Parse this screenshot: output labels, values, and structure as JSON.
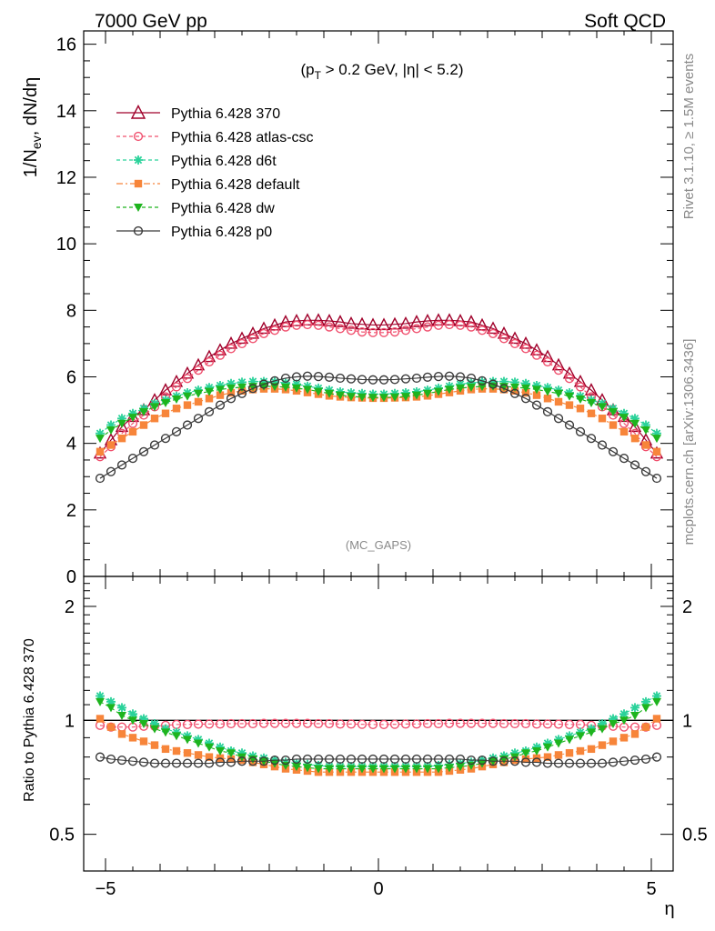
{
  "header": {
    "left": "7000 GeV pp",
    "right": "Soft QCD"
  },
  "cut_label": {
    "pre": "(p",
    "sub": "T",
    "post": " > 0.2 GeV, |η| < 5.2)"
  },
  "watermark": "(MC_GAPS)",
  "side": {
    "rivet": "Rivet 3.1.10, ≥ 1.5M events",
    "mcplots": "mcplots.cern.ch [arXiv:1306.3436]"
  },
  "chart_data": [
    {
      "type": "line",
      "ylabel": "1/Nev, dN/dη",
      "ylabel_parts": {
        "a": "1/N",
        "sub": "ev",
        "b": ", dN/dη"
      },
      "xlim": [
        -5.4,
        5.4
      ],
      "ylim": [
        0,
        16.4
      ],
      "yticks": [
        0,
        2,
        4,
        6,
        8,
        10,
        12,
        14,
        16
      ],
      "x": [
        -5.1,
        -4.9,
        -4.7,
        -4.5,
        -4.3,
        -4.1,
        -3.9,
        -3.7,
        -3.5,
        -3.3,
        -3.1,
        -2.9,
        -2.7,
        -2.5,
        -2.3,
        -2.1,
        -1.9,
        -1.7,
        -1.5,
        -1.3,
        -1.1,
        -0.9,
        -0.7,
        -0.5,
        -0.3,
        -0.1,
        0.1,
        0.3,
        0.5,
        0.7,
        0.9,
        1.1,
        1.3,
        1.5,
        1.7,
        1.9,
        2.1,
        2.3,
        2.5,
        2.7,
        2.9,
        3.1,
        3.3,
        3.5,
        3.7,
        3.9,
        4.1,
        4.3,
        4.5,
        4.7,
        4.9,
        5.1
      ],
      "series": [
        {
          "name": "Pythia 6.428 370",
          "color": "#a0002a",
          "marker": "triangle-open",
          "dash": "solid",
          "values": [
            3.7,
            4.1,
            4.5,
            4.8,
            5.0,
            5.3,
            5.6,
            5.85,
            6.1,
            6.35,
            6.6,
            6.8,
            7.0,
            7.15,
            7.3,
            7.45,
            7.55,
            7.65,
            7.68,
            7.7,
            7.7,
            7.68,
            7.65,
            7.6,
            7.58,
            7.56,
            7.56,
            7.58,
            7.6,
            7.65,
            7.68,
            7.7,
            7.7,
            7.68,
            7.65,
            7.55,
            7.45,
            7.3,
            7.15,
            7.0,
            6.8,
            6.6,
            6.35,
            6.1,
            5.85,
            5.6,
            5.3,
            5.0,
            4.8,
            4.5,
            4.1,
            3.7
          ]
        },
        {
          "name": "Pythia 6.428 atlas-csc",
          "color": "#f0506e",
          "marker": "circle-open",
          "dash": "4,3",
          "values": [
            3.6,
            3.9,
            4.3,
            4.6,
            4.85,
            5.1,
            5.4,
            5.7,
            5.95,
            6.2,
            6.45,
            6.65,
            6.85,
            7.0,
            7.15,
            7.3,
            7.4,
            7.5,
            7.55,
            7.57,
            7.55,
            7.5,
            7.45,
            7.4,
            7.35,
            7.33,
            7.33,
            7.35,
            7.4,
            7.45,
            7.5,
            7.55,
            7.57,
            7.55,
            7.5,
            7.4,
            7.3,
            7.15,
            7.0,
            6.85,
            6.65,
            6.45,
            6.2,
            5.95,
            5.7,
            5.4,
            5.1,
            4.85,
            4.6,
            4.3,
            3.9,
            3.6
          ]
        },
        {
          "name": "Pythia 6.428 d6t",
          "color": "#2ad29a",
          "marker": "star",
          "dash": "4,3",
          "values": [
            4.3,
            4.55,
            4.75,
            4.9,
            5.05,
            5.2,
            5.3,
            5.42,
            5.52,
            5.6,
            5.68,
            5.74,
            5.8,
            5.84,
            5.86,
            5.86,
            5.85,
            5.82,
            5.78,
            5.72,
            5.66,
            5.6,
            5.55,
            5.52,
            5.5,
            5.48,
            5.48,
            5.5,
            5.52,
            5.55,
            5.6,
            5.66,
            5.72,
            5.78,
            5.82,
            5.85,
            5.86,
            5.86,
            5.84,
            5.8,
            5.74,
            5.68,
            5.6,
            5.52,
            5.42,
            5.3,
            5.2,
            5.05,
            4.9,
            4.75,
            4.55,
            4.3
          ]
        },
        {
          "name": "Pythia 6.428 default",
          "color": "#f7853a",
          "marker": "square",
          "dash": "7,3,2,3",
          "values": [
            3.75,
            3.95,
            4.15,
            4.35,
            4.55,
            4.75,
            4.9,
            5.05,
            5.15,
            5.25,
            5.35,
            5.45,
            5.52,
            5.58,
            5.62,
            5.64,
            5.64,
            5.62,
            5.58,
            5.53,
            5.48,
            5.43,
            5.4,
            5.38,
            5.37,
            5.36,
            5.36,
            5.37,
            5.38,
            5.4,
            5.43,
            5.48,
            5.53,
            5.58,
            5.62,
            5.64,
            5.64,
            5.62,
            5.58,
            5.52,
            5.45,
            5.35,
            5.25,
            5.15,
            5.05,
            4.9,
            4.75,
            4.55,
            4.35,
            4.15,
            3.95,
            3.75
          ]
        },
        {
          "name": "Pythia 6.428 dw",
          "color": "#1eb41e",
          "marker": "triangle-down",
          "dash": "4,3",
          "values": [
            4.15,
            4.4,
            4.6,
            4.78,
            4.95,
            5.1,
            5.22,
            5.33,
            5.42,
            5.5,
            5.56,
            5.62,
            5.66,
            5.69,
            5.71,
            5.72,
            5.71,
            5.69,
            5.66,
            5.62,
            5.56,
            5.5,
            5.45,
            5.41,
            5.39,
            5.38,
            5.38,
            5.39,
            5.41,
            5.45,
            5.5,
            5.56,
            5.62,
            5.66,
            5.69,
            5.71,
            5.72,
            5.71,
            5.69,
            5.66,
            5.62,
            5.56,
            5.5,
            5.42,
            5.33,
            5.22,
            5.1,
            4.95,
            4.78,
            4.6,
            4.4,
            4.15
          ]
        },
        {
          "name": "Pythia 6.428 p0",
          "color": "#3a3a3a",
          "marker": "circle-open",
          "dash": "solid",
          "values": [
            2.95,
            3.15,
            3.35,
            3.55,
            3.75,
            3.95,
            4.15,
            4.35,
            4.55,
            4.75,
            4.95,
            5.15,
            5.35,
            5.5,
            5.65,
            5.78,
            5.88,
            5.96,
            6.0,
            6.02,
            6.01,
            5.99,
            5.96,
            5.94,
            5.92,
            5.91,
            5.91,
            5.92,
            5.94,
            5.96,
            5.99,
            6.01,
            6.02,
            6.0,
            5.96,
            5.88,
            5.78,
            5.65,
            5.5,
            5.35,
            5.15,
            4.95,
            4.75,
            4.55,
            4.35,
            4.15,
            3.95,
            3.75,
            3.55,
            3.35,
            3.15,
            2.95
          ]
        }
      ]
    },
    {
      "type": "line",
      "ylabel": "Ratio to Pythia 6.428 370",
      "xlabel": "η",
      "xlim": [
        -5.4,
        5.4
      ],
      "ylim": [
        0.4,
        2.4
      ],
      "yscale": "log",
      "yticks": [
        0.5,
        1,
        2
      ],
      "ytick_labels": [
        "0.5",
        "1",
        "2"
      ],
      "xticks": [
        -5,
        0,
        5
      ],
      "xtick_labels": [
        "−5",
        "0",
        "5"
      ],
      "x": [
        -5.1,
        -4.9,
        -4.7,
        -4.5,
        -4.3,
        -4.1,
        -3.9,
        -3.7,
        -3.5,
        -3.3,
        -3.1,
        -2.9,
        -2.7,
        -2.5,
        -2.3,
        -2.1,
        -1.9,
        -1.7,
        -1.5,
        -1.3,
        -1.1,
        -0.9,
        -0.7,
        -0.5,
        -0.3,
        -0.1,
        0.1,
        0.3,
        0.5,
        0.7,
        0.9,
        1.1,
        1.3,
        1.5,
        1.7,
        1.9,
        2.1,
        2.3,
        2.5,
        2.7,
        2.9,
        3.1,
        3.3,
        3.5,
        3.7,
        3.9,
        4.1,
        4.3,
        4.5,
        4.7,
        4.9,
        5.1
      ],
      "series": [
        {
          "name": "Pythia 6.428 370",
          "color": "#a0002a",
          "marker": "none",
          "dash": "solid",
          "values": [
            1,
            1,
            1,
            1,
            1,
            1,
            1,
            1,
            1,
            1,
            1,
            1,
            1,
            1,
            1,
            1,
            1,
            1,
            1,
            1,
            1,
            1,
            1,
            1,
            1,
            1,
            1,
            1,
            1,
            1,
            1,
            1,
            1,
            1,
            1,
            1,
            1,
            1,
            1,
            1,
            1,
            1,
            1,
            1,
            1,
            1,
            1,
            1,
            1,
            1,
            1,
            1
          ]
        },
        {
          "name": "Pythia 6.428 atlas-csc",
          "color": "#f0506e",
          "marker": "circle-open",
          "dash": "4,3",
          "values": [
            0.97,
            0.96,
            0.96,
            0.96,
            0.965,
            0.965,
            0.97,
            0.975,
            0.975,
            0.977,
            0.978,
            0.978,
            0.98,
            0.98,
            0.98,
            0.982,
            0.982,
            0.982,
            0.982,
            0.982,
            0.98,
            0.98,
            0.978,
            0.978,
            0.976,
            0.975,
            0.975,
            0.976,
            0.978,
            0.978,
            0.98,
            0.98,
            0.982,
            0.982,
            0.982,
            0.982,
            0.982,
            0.98,
            0.98,
            0.98,
            0.978,
            0.978,
            0.977,
            0.975,
            0.975,
            0.97,
            0.965,
            0.965,
            0.96,
            0.96,
            0.96,
            0.97
          ]
        },
        {
          "name": "Pythia 6.428 d6t",
          "color": "#2ad29a",
          "marker": "star",
          "dash": "4,3",
          "values": [
            1.16,
            1.12,
            1.08,
            1.04,
            1.01,
            0.98,
            0.95,
            0.93,
            0.91,
            0.89,
            0.87,
            0.85,
            0.83,
            0.82,
            0.805,
            0.795,
            0.785,
            0.775,
            0.77,
            0.765,
            0.76,
            0.755,
            0.755,
            0.755,
            0.755,
            0.755,
            0.755,
            0.755,
            0.755,
            0.755,
            0.755,
            0.76,
            0.765,
            0.77,
            0.775,
            0.785,
            0.795,
            0.805,
            0.82,
            0.83,
            0.85,
            0.87,
            0.89,
            0.91,
            0.93,
            0.95,
            0.98,
            1.01,
            1.04,
            1.08,
            1.12,
            1.16
          ]
        },
        {
          "name": "Pythia 6.428 default",
          "color": "#f7853a",
          "marker": "square",
          "dash": "7,3,2,3",
          "values": [
            1.01,
            0.96,
            0.92,
            0.9,
            0.88,
            0.86,
            0.84,
            0.83,
            0.82,
            0.81,
            0.8,
            0.795,
            0.79,
            0.785,
            0.775,
            0.765,
            0.755,
            0.745,
            0.74,
            0.735,
            0.73,
            0.73,
            0.73,
            0.73,
            0.73,
            0.73,
            0.73,
            0.73,
            0.73,
            0.73,
            0.73,
            0.73,
            0.735,
            0.74,
            0.745,
            0.755,
            0.765,
            0.775,
            0.785,
            0.79,
            0.795,
            0.8,
            0.81,
            0.82,
            0.83,
            0.84,
            0.86,
            0.88,
            0.9,
            0.92,
            0.96,
            1.01
          ]
        },
        {
          "name": "Pythia 6.428 dw",
          "color": "#1eb41e",
          "marker": "triangle-down",
          "dash": "4,3",
          "values": [
            1.12,
            1.08,
            1.03,
            1.0,
            0.98,
            0.95,
            0.93,
            0.91,
            0.89,
            0.87,
            0.85,
            0.83,
            0.82,
            0.8,
            0.79,
            0.78,
            0.77,
            0.76,
            0.755,
            0.75,
            0.745,
            0.745,
            0.745,
            0.745,
            0.745,
            0.745,
            0.745,
            0.745,
            0.745,
            0.745,
            0.745,
            0.745,
            0.75,
            0.755,
            0.76,
            0.77,
            0.78,
            0.79,
            0.8,
            0.82,
            0.83,
            0.85,
            0.87,
            0.89,
            0.91,
            0.93,
            0.95,
            0.98,
            1.0,
            1.03,
            1.08,
            1.12
          ]
        },
        {
          "name": "Pythia 6.428 p0",
          "color": "#3a3a3a",
          "marker": "circle-open",
          "dash": "solid",
          "values": [
            0.8,
            0.79,
            0.785,
            0.78,
            0.775,
            0.77,
            0.77,
            0.77,
            0.77,
            0.77,
            0.77,
            0.775,
            0.775,
            0.78,
            0.78,
            0.78,
            0.785,
            0.785,
            0.79,
            0.79,
            0.79,
            0.79,
            0.79,
            0.79,
            0.79,
            0.79,
            0.79,
            0.79,
            0.79,
            0.79,
            0.79,
            0.79,
            0.79,
            0.79,
            0.785,
            0.785,
            0.78,
            0.78,
            0.78,
            0.775,
            0.775,
            0.77,
            0.77,
            0.77,
            0.77,
            0.77,
            0.77,
            0.775,
            0.78,
            0.785,
            0.79,
            0.8
          ]
        }
      ]
    }
  ]
}
